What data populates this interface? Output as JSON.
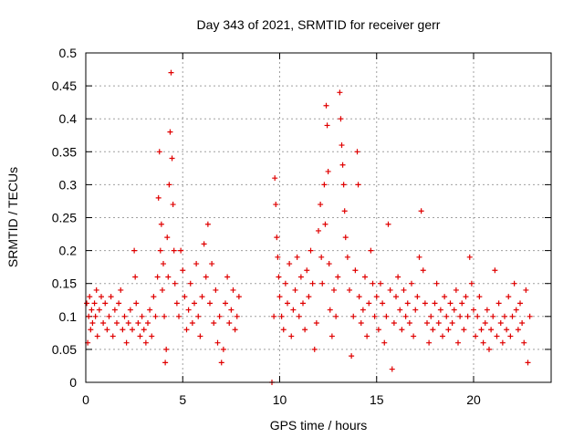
{
  "chart_data": {
    "type": "scatter",
    "title": "Day 343 of 2021, SRMTID for receiver gerr",
    "xlabel": "GPS time / hours",
    "ylabel": "SRMTID / TECUs",
    "xlim": [
      0,
      24
    ],
    "ylim": [
      0,
      0.5
    ],
    "xticks": [
      0,
      5,
      10,
      15,
      20
    ],
    "yticks": [
      0,
      0.05,
      0.1,
      0.15,
      0.2,
      0.25,
      0.3,
      0.35,
      0.4,
      0.45,
      0.5
    ],
    "xtick_labels": [
      "0",
      "5",
      "10",
      "15",
      "20"
    ],
    "ytick_labels": [
      "0",
      "0.05",
      "0.1",
      "0.15",
      "0.2",
      "0.25",
      "0.3",
      "0.35",
      "0.4",
      "0.45",
      "0.5"
    ],
    "grid": true,
    "marker": "+",
    "color": "#e00000",
    "series": [
      {
        "name": "SRMTID",
        "points": [
          [
            0.05,
            0.12
          ],
          [
            0.1,
            0.06
          ],
          [
            0.15,
            0.1
          ],
          [
            0.2,
            0.13
          ],
          [
            0.25,
            0.08
          ],
          [
            0.3,
            0.11
          ],
          [
            0.35,
            0.09
          ],
          [
            0.45,
            0.12
          ],
          [
            0.5,
            0.1
          ],
          [
            0.55,
            0.14
          ],
          [
            0.6,
            0.07
          ],
          [
            0.7,
            0.11
          ],
          [
            0.8,
            0.13
          ],
          [
            0.9,
            0.09
          ],
          [
            1.0,
            0.12
          ],
          [
            1.1,
            0.08
          ],
          [
            1.2,
            0.1
          ],
          [
            1.3,
            0.13
          ],
          [
            1.4,
            0.07
          ],
          [
            1.5,
            0.11
          ],
          [
            1.6,
            0.09
          ],
          [
            1.7,
            0.12
          ],
          [
            1.8,
            0.14
          ],
          [
            1.9,
            0.08
          ],
          [
            2.0,
            0.1
          ],
          [
            2.1,
            0.06
          ],
          [
            2.2,
            0.09
          ],
          [
            2.3,
            0.11
          ],
          [
            2.4,
            0.08
          ],
          [
            2.5,
            0.2
          ],
          [
            2.55,
            0.16
          ],
          [
            2.6,
            0.12
          ],
          [
            2.7,
            0.09
          ],
          [
            2.8,
            0.07
          ],
          [
            2.9,
            0.1
          ],
          [
            3.0,
            0.08
          ],
          [
            3.1,
            0.06
          ],
          [
            3.2,
            0.09
          ],
          [
            3.3,
            0.11
          ],
          [
            3.4,
            0.07
          ],
          [
            3.5,
            0.13
          ],
          [
            3.6,
            0.1
          ],
          [
            3.7,
            0.16
          ],
          [
            3.75,
            0.28
          ],
          [
            3.8,
            0.35
          ],
          [
            3.85,
            0.2
          ],
          [
            3.9,
            0.24
          ],
          [
            3.95,
            0.14
          ],
          [
            4.0,
            0.18
          ],
          [
            4.05,
            0.1
          ],
          [
            4.1,
            0.03
          ],
          [
            4.15,
            0.05
          ],
          [
            4.2,
            0.22
          ],
          [
            4.25,
            0.16
          ],
          [
            4.3,
            0.3
          ],
          [
            4.35,
            0.38
          ],
          [
            4.4,
            0.47
          ],
          [
            4.45,
            0.34
          ],
          [
            4.5,
            0.27
          ],
          [
            4.55,
            0.2
          ],
          [
            4.6,
            0.15
          ],
          [
            4.7,
            0.12
          ],
          [
            4.8,
            0.1
          ],
          [
            4.9,
            0.2
          ],
          [
            5.0,
            0.17
          ],
          [
            5.1,
            0.13
          ],
          [
            5.2,
            0.08
          ],
          [
            5.3,
            0.11
          ],
          [
            5.4,
            0.15
          ],
          [
            5.5,
            0.09
          ],
          [
            5.6,
            0.12
          ],
          [
            5.7,
            0.18
          ],
          [
            5.8,
            0.1
          ],
          [
            5.9,
            0.07
          ],
          [
            6.0,
            0.13
          ],
          [
            6.1,
            0.21
          ],
          [
            6.2,
            0.16
          ],
          [
            6.3,
            0.24
          ],
          [
            6.4,
            0.12
          ],
          [
            6.5,
            0.18
          ],
          [
            6.6,
            0.09
          ],
          [
            6.7,
            0.14
          ],
          [
            6.8,
            0.06
          ],
          [
            6.9,
            0.1
          ],
          [
            7.0,
            0.03
          ],
          [
            7.1,
            0.05
          ],
          [
            7.2,
            0.12
          ],
          [
            7.3,
            0.16
          ],
          [
            7.4,
            0.09
          ],
          [
            7.5,
            0.11
          ],
          [
            7.6,
            0.14
          ],
          [
            7.7,
            0.08
          ],
          [
            7.8,
            0.1
          ],
          [
            7.9,
            0.13
          ],
          [
            9.6,
            0.0
          ],
          [
            9.7,
            0.1
          ],
          [
            9.75,
            0.31
          ],
          [
            9.8,
            0.27
          ],
          [
            9.85,
            0.22
          ],
          [
            9.9,
            0.19
          ],
          [
            9.95,
            0.16
          ],
          [
            10.0,
            0.13
          ],
          [
            10.1,
            0.1
          ],
          [
            10.2,
            0.08
          ],
          [
            10.3,
            0.15
          ],
          [
            10.4,
            0.12
          ],
          [
            10.5,
            0.18
          ],
          [
            10.6,
            0.07
          ],
          [
            10.7,
            0.11
          ],
          [
            10.8,
            0.14
          ],
          [
            10.9,
            0.19
          ],
          [
            11.0,
            0.1
          ],
          [
            11.1,
            0.16
          ],
          [
            11.2,
            0.12
          ],
          [
            11.3,
            0.08
          ],
          [
            11.4,
            0.17
          ],
          [
            11.5,
            0.13
          ],
          [
            11.6,
            0.2
          ],
          [
            11.7,
            0.15
          ],
          [
            11.8,
            0.05
          ],
          [
            11.9,
            0.09
          ],
          [
            12.0,
            0.23
          ],
          [
            12.1,
            0.27
          ],
          [
            12.15,
            0.19
          ],
          [
            12.2,
            0.15
          ],
          [
            12.3,
            0.3
          ],
          [
            12.35,
            0.24
          ],
          [
            12.4,
            0.42
          ],
          [
            12.45,
            0.39
          ],
          [
            12.5,
            0.32
          ],
          [
            12.55,
            0.18
          ],
          [
            12.6,
            0.11
          ],
          [
            12.7,
            0.07
          ],
          [
            12.8,
            0.14
          ],
          [
            12.9,
            0.1
          ],
          [
            13.0,
            0.16
          ],
          [
            13.1,
            0.44
          ],
          [
            13.15,
            0.4
          ],
          [
            13.2,
            0.36
          ],
          [
            13.25,
            0.33
          ],
          [
            13.3,
            0.3
          ],
          [
            13.35,
            0.26
          ],
          [
            13.4,
            0.22
          ],
          [
            13.5,
            0.19
          ],
          [
            13.6,
            0.14
          ],
          [
            13.7,
            0.04
          ],
          [
            13.8,
            0.1
          ],
          [
            13.9,
            0.17
          ],
          [
            14.0,
            0.35
          ],
          [
            14.05,
            0.3
          ],
          [
            14.1,
            0.13
          ],
          [
            14.2,
            0.09
          ],
          [
            14.3,
            0.11
          ],
          [
            14.4,
            0.16
          ],
          [
            14.5,
            0.07
          ],
          [
            14.6,
            0.12
          ],
          [
            14.7,
            0.2
          ],
          [
            14.8,
            0.15
          ],
          [
            14.9,
            0.1
          ],
          [
            15.0,
            0.13
          ],
          [
            15.1,
            0.08
          ],
          [
            15.2,
            0.15
          ],
          [
            15.3,
            0.12
          ],
          [
            15.4,
            0.06
          ],
          [
            15.5,
            0.1
          ],
          [
            15.6,
            0.24
          ],
          [
            15.7,
            0.14
          ],
          [
            15.8,
            0.02
          ],
          [
            15.9,
            0.09
          ],
          [
            16.0,
            0.13
          ],
          [
            16.1,
            0.16
          ],
          [
            16.2,
            0.11
          ],
          [
            16.3,
            0.08
          ],
          [
            16.4,
            0.14
          ],
          [
            16.5,
            0.1
          ],
          [
            16.6,
            0.12
          ],
          [
            16.7,
            0.09
          ],
          [
            16.8,
            0.15
          ],
          [
            16.9,
            0.07
          ],
          [
            17.0,
            0.11
          ],
          [
            17.1,
            0.13
          ],
          [
            17.2,
            0.19
          ],
          [
            17.3,
            0.26
          ],
          [
            17.4,
            0.17
          ],
          [
            17.5,
            0.12
          ],
          [
            17.6,
            0.09
          ],
          [
            17.7,
            0.06
          ],
          [
            17.8,
            0.1
          ],
          [
            17.9,
            0.08
          ],
          [
            18.0,
            0.12
          ],
          [
            18.1,
            0.15
          ],
          [
            18.2,
            0.09
          ],
          [
            18.3,
            0.11
          ],
          [
            18.4,
            0.07
          ],
          [
            18.5,
            0.13
          ],
          [
            18.6,
            0.1
          ],
          [
            18.7,
            0.08
          ],
          [
            18.8,
            0.12
          ],
          [
            18.9,
            0.09
          ],
          [
            19.0,
            0.11
          ],
          [
            19.1,
            0.14
          ],
          [
            19.2,
            0.06
          ],
          [
            19.3,
            0.1
          ],
          [
            19.4,
            0.12
          ],
          [
            19.5,
            0.08
          ],
          [
            19.6,
            0.13
          ],
          [
            19.7,
            0.1
          ],
          [
            19.8,
            0.19
          ],
          [
            19.9,
            0.15
          ],
          [
            20.0,
            0.11
          ],
          [
            20.1,
            0.07
          ],
          [
            20.2,
            0.1
          ],
          [
            20.3,
            0.13
          ],
          [
            20.4,
            0.08
          ],
          [
            20.5,
            0.06
          ],
          [
            20.6,
            0.09
          ],
          [
            20.7,
            0.11
          ],
          [
            20.8,
            0.05
          ],
          [
            20.9,
            0.08
          ],
          [
            21.0,
            0.1
          ],
          [
            21.1,
            0.17
          ],
          [
            21.2,
            0.07
          ],
          [
            21.3,
            0.12
          ],
          [
            21.4,
            0.09
          ],
          [
            21.5,
            0.06
          ],
          [
            21.6,
            0.1
          ],
          [
            21.7,
            0.08
          ],
          [
            21.8,
            0.13
          ],
          [
            21.9,
            0.07
          ],
          [
            22.0,
            0.1
          ],
          [
            22.1,
            0.15
          ],
          [
            22.2,
            0.11
          ],
          [
            22.3,
            0.08
          ],
          [
            22.4,
            0.12
          ],
          [
            22.5,
            0.09
          ],
          [
            22.6,
            0.06
          ],
          [
            22.7,
            0.14
          ],
          [
            22.8,
            0.03
          ],
          [
            22.9,
            0.1
          ]
        ]
      }
    ]
  }
}
